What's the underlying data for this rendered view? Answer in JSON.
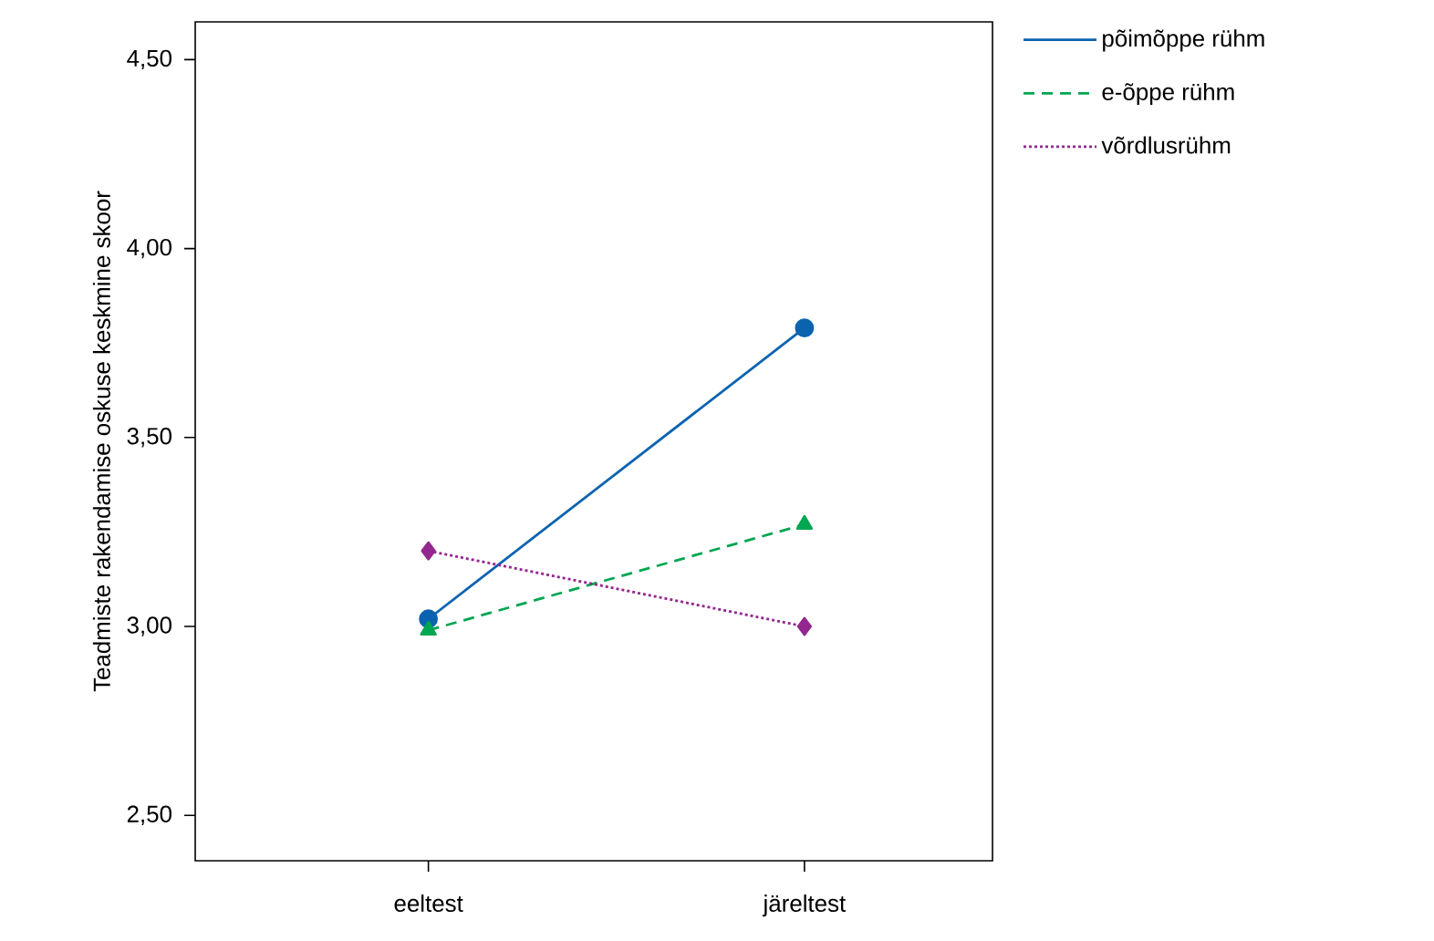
{
  "chart_data": {
    "type": "line",
    "ylabel": "Teadmiste rakendamise oskuse keskmine skoor",
    "categories": [
      "eeltest",
      "järeltest"
    ],
    "ylim": [
      2.38,
      4.6
    ],
    "yticks": [
      {
        "value": 2.5,
        "label": "2,50"
      },
      {
        "value": 3.0,
        "label": "3,00"
      },
      {
        "value": 3.5,
        "label": "3,50"
      },
      {
        "value": 4.0,
        "label": "4,00"
      },
      {
        "value": 4.5,
        "label": "4,50"
      }
    ],
    "legend": "right",
    "grid": false,
    "series": [
      {
        "name": "põimõppe rühm",
        "color": "#0b63b0",
        "values": [
          3.02,
          3.79
        ],
        "marker": "circle",
        "line_style": "solid"
      },
      {
        "name": "e-õppe rühm",
        "color": "#00a651",
        "values": [
          2.99,
          3.27
        ],
        "marker": "triangle",
        "line_style": "dashed"
      },
      {
        "name": "võrdlusrühm",
        "color": "#93278f",
        "values": [
          3.2,
          3.0
        ],
        "marker": "diamond",
        "line_style": "dotted"
      }
    ]
  }
}
